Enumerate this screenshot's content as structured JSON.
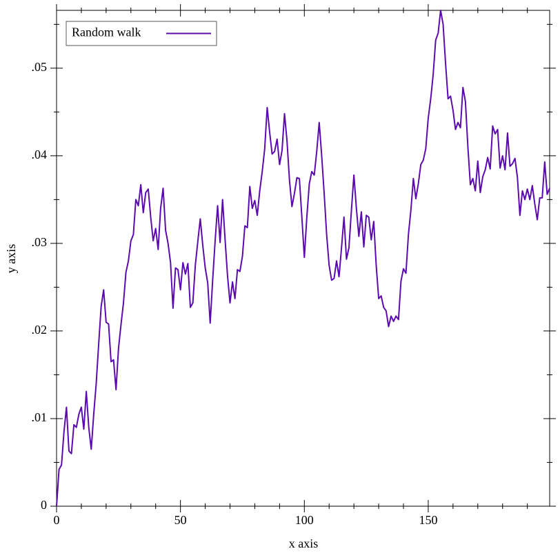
{
  "chart_data": {
    "type": "line",
    "xlabel": "x axis",
    "ylabel": "y axis",
    "x": [
      0,
      1,
      2,
      3,
      4,
      5,
      6,
      7,
      8,
      9,
      10,
      11,
      12,
      13,
      14,
      15,
      16,
      17,
      18,
      19,
      20,
      21,
      22,
      23,
      24,
      25,
      26,
      27,
      28,
      29,
      30,
      31,
      32,
      33,
      34,
      35,
      36,
      37,
      38,
      39,
      40,
      41,
      42,
      43,
      44,
      45,
      46,
      47,
      48,
      49,
      50,
      51,
      52,
      53,
      54,
      55,
      56,
      57,
      58,
      59,
      60,
      61,
      62,
      63,
      64,
      65,
      66,
      67,
      68,
      69,
      70,
      71,
      72,
      73,
      74,
      75,
      76,
      77,
      78,
      79,
      80,
      81,
      82,
      83,
      84,
      85,
      86,
      87,
      88,
      89,
      90,
      91,
      92,
      93,
      94,
      95,
      96,
      97,
      98,
      99,
      100,
      101,
      102,
      103,
      104,
      105,
      106,
      107,
      108,
      109,
      110,
      111,
      112,
      113,
      114,
      115,
      116,
      117,
      118,
      119,
      120,
      121,
      122,
      123,
      124,
      125,
      126,
      127,
      128,
      129,
      130,
      131,
      132,
      133,
      134,
      135,
      136,
      137,
      138,
      139,
      140,
      141,
      142,
      143,
      144,
      145,
      146,
      147,
      148,
      149,
      150,
      151,
      152,
      153,
      154,
      155,
      156,
      157,
      158,
      159,
      160,
      161,
      162,
      163,
      164,
      165,
      166,
      167,
      168,
      169,
      170,
      171,
      172,
      173,
      174,
      175,
      176,
      177,
      178,
      179,
      180,
      181,
      182,
      183,
      184,
      185,
      186,
      187,
      188,
      189,
      190,
      191,
      192,
      193,
      194,
      195,
      196,
      197,
      198,
      199
    ],
    "series": [
      {
        "name": "Random walk",
        "color": "#5b0ab0",
        "values": [
          0,
          0.0042,
          0.0047,
          0.0085,
          0.0113,
          0.0063,
          0.006,
          0.0093,
          0.009,
          0.0105,
          0.0113,
          0.0088,
          0.0131,
          0.009,
          0.0065,
          0.0105,
          0.014,
          0.0185,
          0.0228,
          0.0247,
          0.021,
          0.0208,
          0.0165,
          0.0167,
          0.0133,
          0.018,
          0.0207,
          0.0232,
          0.0267,
          0.028,
          0.0303,
          0.031,
          0.035,
          0.0343,
          0.0367,
          0.0335,
          0.0358,
          0.0362,
          0.033,
          0.0303,
          0.0317,
          0.0293,
          0.034,
          0.0363,
          0.0315,
          0.03,
          0.0278,
          0.0226,
          0.0272,
          0.027,
          0.0247,
          0.0278,
          0.0265,
          0.0277,
          0.0227,
          0.0232,
          0.0275,
          0.0302,
          0.0328,
          0.0298,
          0.0272,
          0.0255,
          0.0209,
          0.0258,
          0.0303,
          0.0343,
          0.0301,
          0.035,
          0.0305,
          0.0263,
          0.0232,
          0.0256,
          0.0237,
          0.027,
          0.0268,
          0.0285,
          0.032,
          0.0318,
          0.0365,
          0.034,
          0.0349,
          0.0332,
          0.036,
          0.0382,
          0.0408,
          0.0455,
          0.0427,
          0.0402,
          0.0405,
          0.0419,
          0.039,
          0.0406,
          0.0448,
          0.0417,
          0.0372,
          0.0342,
          0.0357,
          0.0375,
          0.0374,
          0.033,
          0.0284,
          0.033,
          0.0368,
          0.0382,
          0.0378,
          0.0405,
          0.0438,
          0.04,
          0.0357,
          0.031,
          0.0275,
          0.0258,
          0.026,
          0.028,
          0.0262,
          0.0295,
          0.033,
          0.0282,
          0.0295,
          0.0338,
          0.0378,
          0.034,
          0.0308,
          0.0336,
          0.0296,
          0.0332,
          0.033,
          0.0304,
          0.0325,
          0.0275,
          0.0237,
          0.024,
          0.0227,
          0.0223,
          0.0205,
          0.0217,
          0.0211,
          0.0217,
          0.0213,
          0.0257,
          0.0271,
          0.0266,
          0.031,
          0.0338,
          0.0374,
          0.0351,
          0.0368,
          0.039,
          0.0395,
          0.0408,
          0.0443,
          0.0465,
          0.0493,
          0.0532,
          0.054,
          0.0566,
          0.055,
          0.0505,
          0.0465,
          0.0468,
          0.0452,
          0.043,
          0.0438,
          0.0432,
          0.0478,
          0.0462,
          0.041,
          0.0367,
          0.0374,
          0.036,
          0.0394,
          0.0358,
          0.0376,
          0.0384,
          0.0398,
          0.0385,
          0.0434,
          0.0425,
          0.043,
          0.0386,
          0.04,
          0.0384,
          0.0426,
          0.0388,
          0.0391,
          0.0397,
          0.0375,
          0.0332,
          0.036,
          0.035,
          0.0362,
          0.035,
          0.0366,
          0.0345,
          0.0327,
          0.0352,
          0.0352,
          0.0393,
          0.0356,
          0.0363
        ]
      }
    ],
    "xlim": [
      0,
      199
    ],
    "ylim": [
      0,
      0.0566
    ],
    "xticks": [
      0,
      50,
      100,
      150
    ],
    "xminorticks": [
      10,
      20,
      30,
      40,
      60,
      70,
      80,
      90,
      110,
      120,
      130,
      140,
      160,
      170,
      180,
      190
    ],
    "yticks": [
      0,
      {
        "value": 0.01,
        "label": ".01"
      },
      {
        "value": 0.02,
        "label": ".02"
      },
      {
        "value": 0.03,
        "label": ".03"
      },
      {
        "value": 0.04,
        "label": ".04"
      },
      {
        "value": 0.05,
        "label": ".05"
      }
    ],
    "yminorticks": [
      0.005,
      0.015,
      0.025,
      0.035,
      0.045,
      0.055
    ],
    "legend": "top-left"
  }
}
